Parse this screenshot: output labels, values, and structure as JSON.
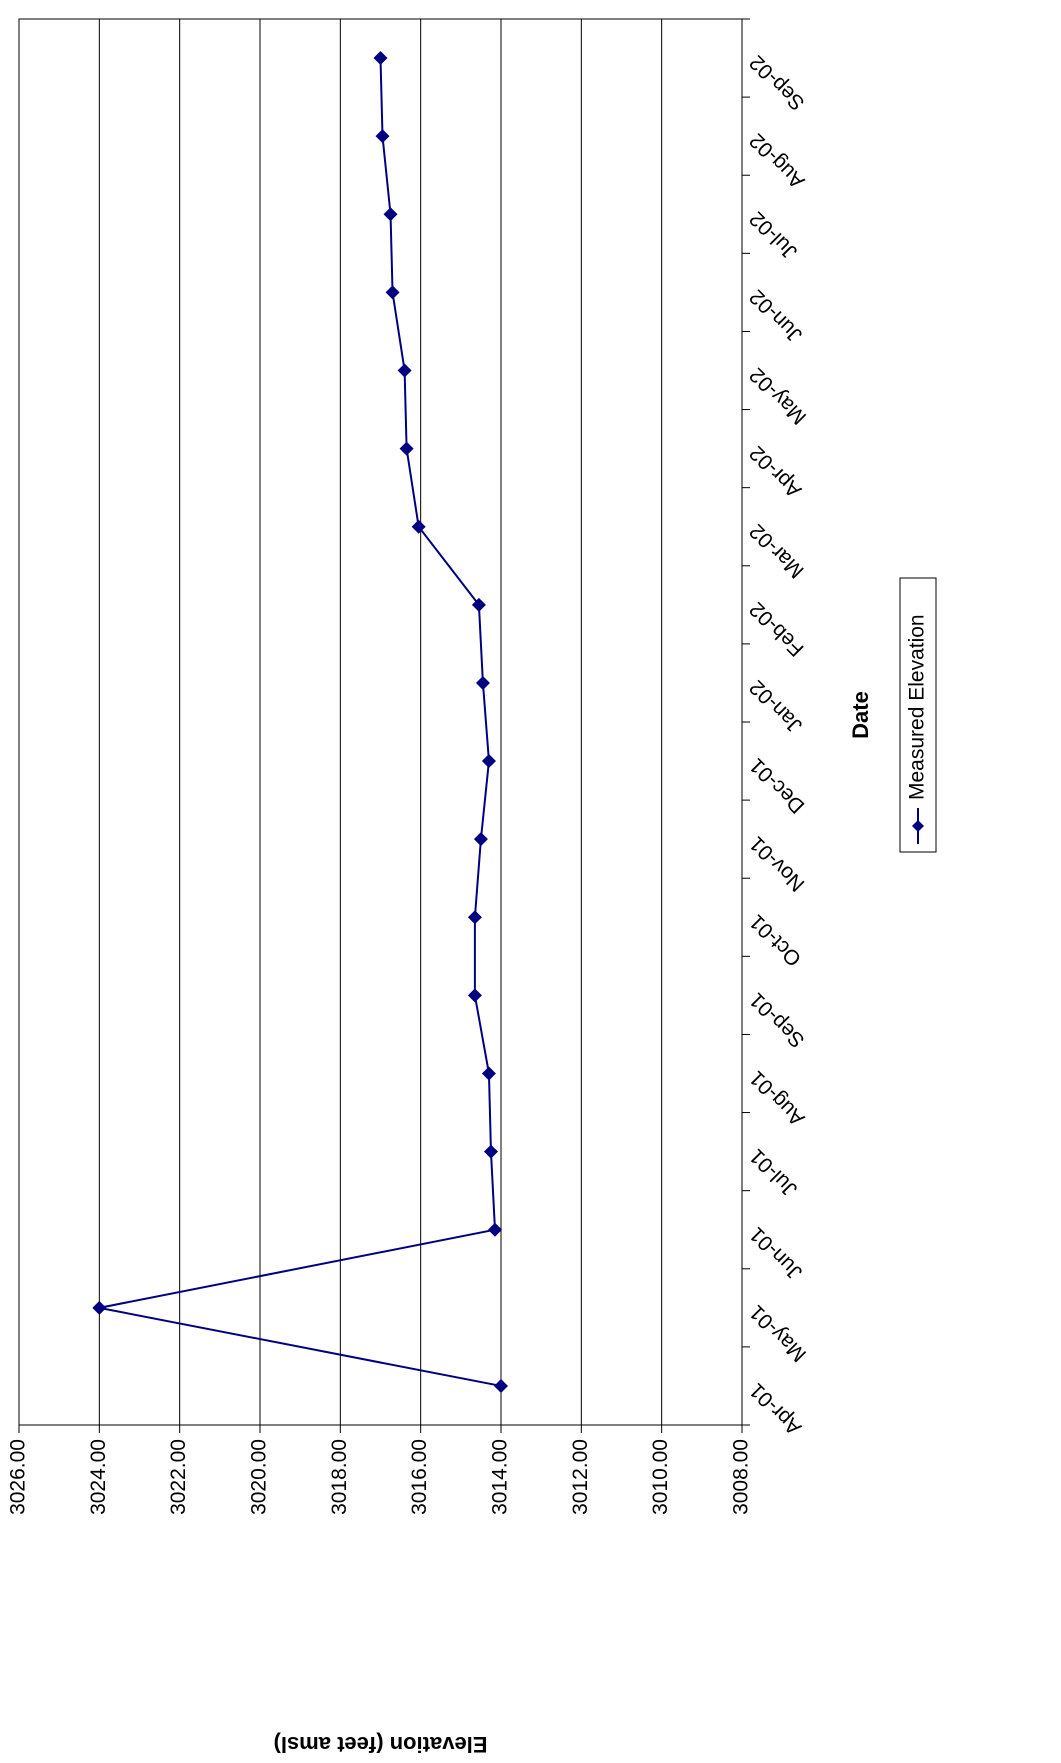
{
  "chart_data": {
    "type": "line",
    "title": "",
    "xlabel": "Date",
    "ylabel": "Elevation (feet amsl)",
    "ylim": [
      3008,
      3026
    ],
    "yticks": [
      "3008.00",
      "3010.00",
      "3012.00",
      "3014.00",
      "3016.00",
      "3018.00",
      "3020.00",
      "3022.00",
      "3024.00",
      "3026.00"
    ],
    "xticks": [
      "Apr-01",
      "May-01",
      "Jun-01",
      "Jul-01",
      "Aug-01",
      "Sep-01",
      "Oct-01",
      "Nov-01",
      "Dec-01",
      "Jan-02",
      "Feb-02",
      "Mar-02",
      "Apr-02",
      "May-02",
      "Jun-02",
      "Jul-02",
      "Aug-02",
      "Sep-02"
    ],
    "grid": true,
    "legend_position": "bottom",
    "orientation": "rotated 180 degrees",
    "series": [
      {
        "name": "Measured Elevation",
        "color": "#000080",
        "marker": "diamond",
        "points": [
          {
            "x": "Apr-01",
            "y": 3014.0
          },
          {
            "x": "May-01",
            "y": 3024.0
          },
          {
            "x": "Jun-01",
            "y": 3014.15
          },
          {
            "x": "Jul-01",
            "y": 3014.25
          },
          {
            "x": "Aug-01",
            "y": 3014.3
          },
          {
            "x": "Sep-01",
            "y": 3014.65
          },
          {
            "x": "Oct-01",
            "y": 3014.65
          },
          {
            "x": "Nov-01",
            "y": 3014.5
          },
          {
            "x": "Dec-01",
            "y": 3014.3
          },
          {
            "x": "Jan-02",
            "y": 3014.45
          },
          {
            "x": "Feb-02",
            "y": 3014.55
          },
          {
            "x": "Mar-02",
            "y": 3016.05
          },
          {
            "x": "Apr-02",
            "y": 3016.35
          },
          {
            "x": "May-02",
            "y": 3016.4
          },
          {
            "x": "Jun-02",
            "y": 3016.7
          },
          {
            "x": "Jul-02",
            "y": 3016.75
          },
          {
            "x": "Aug-02",
            "y": 3016.95
          },
          {
            "x": "Sep-02",
            "y": 3017.0
          }
        ]
      }
    ]
  }
}
